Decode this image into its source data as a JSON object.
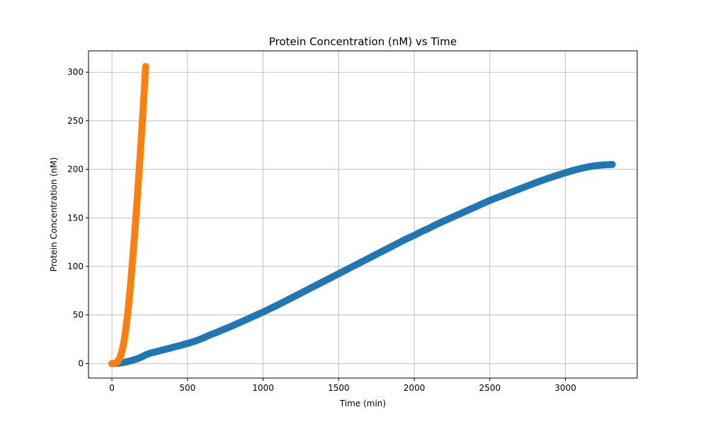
{
  "chart_data": {
    "type": "scatter",
    "title": "Protein Concentration (nM) vs Time",
    "xlabel": "Time (min)",
    "ylabel": "Protein Concentration (nM)",
    "xlim": [
      -155,
      3475
    ],
    "ylim": [
      -15,
      322
    ],
    "xticks": [
      0,
      500,
      1000,
      1500,
      2000,
      2500,
      3000
    ],
    "yticks": [
      0,
      50,
      100,
      150,
      200,
      250,
      300
    ],
    "grid": true,
    "series": [
      {
        "color": "#1f77b4",
        "points": [
          [
            0,
            0
          ],
          [
            25,
            0.1
          ],
          [
            50,
            0.4
          ],
          [
            75,
            1
          ],
          [
            100,
            1.8
          ],
          [
            125,
            2.8
          ],
          [
            150,
            4
          ],
          [
            175,
            5.3
          ],
          [
            200,
            7
          ],
          [
            225,
            9
          ],
          [
            250,
            10.5
          ],
          [
            300,
            12.5
          ],
          [
            350,
            14.5
          ],
          [
            400,
            16.5
          ],
          [
            450,
            18.5
          ],
          [
            500,
            20.7
          ],
          [
            550,
            23
          ],
          [
            600,
            26
          ],
          [
            650,
            29.5
          ],
          [
            700,
            32.5
          ],
          [
            750,
            35.8
          ],
          [
            800,
            39
          ],
          [
            850,
            42.5
          ],
          [
            900,
            46
          ],
          [
            950,
            49.5
          ],
          [
            1000,
            53
          ],
          [
            1050,
            56.8
          ],
          [
            1100,
            60.5
          ],
          [
            1150,
            64.5
          ],
          [
            1200,
            68.5
          ],
          [
            1250,
            72.5
          ],
          [
            1300,
            76.5
          ],
          [
            1350,
            80.5
          ],
          [
            1400,
            84.5
          ],
          [
            1450,
            88.5
          ],
          [
            1500,
            92.5
          ],
          [
            1550,
            96.5
          ],
          [
            1600,
            100.5
          ],
          [
            1650,
            104.5
          ],
          [
            1700,
            108.5
          ],
          [
            1750,
            112.5
          ],
          [
            1800,
            116.5
          ],
          [
            1850,
            120.5
          ],
          [
            1900,
            124.5
          ],
          [
            1950,
            128.5
          ],
          [
            2000,
            132
          ],
          [
            2050,
            136
          ],
          [
            2100,
            139.5
          ],
          [
            2150,
            143.5
          ],
          [
            2200,
            147
          ],
          [
            2250,
            150.5
          ],
          [
            2300,
            154
          ],
          [
            2350,
            157.5
          ],
          [
            2400,
            161
          ],
          [
            2450,
            164.5
          ],
          [
            2500,
            168
          ],
          [
            2550,
            171
          ],
          [
            2600,
            174
          ],
          [
            2650,
            177
          ],
          [
            2700,
            180
          ],
          [
            2750,
            183
          ],
          [
            2800,
            186
          ],
          [
            2850,
            188.8
          ],
          [
            2900,
            191.5
          ],
          [
            2950,
            194
          ],
          [
            3000,
            196.5
          ],
          [
            3050,
            198.8
          ],
          [
            3100,
            200.8
          ],
          [
            3150,
            202.5
          ],
          [
            3200,
            203.8
          ],
          [
            3250,
            204.5
          ],
          [
            3310,
            205
          ]
        ]
      },
      {
        "color": "#ff7f0e",
        "points": [
          [
            0,
            0
          ],
          [
            10,
            0
          ],
          [
            20,
            0.3
          ],
          [
            30,
            1
          ],
          [
            40,
            2.5
          ],
          [
            50,
            5
          ],
          [
            60,
            9
          ],
          [
            70,
            15
          ],
          [
            80,
            23
          ],
          [
            90,
            33
          ],
          [
            100,
            46
          ],
          [
            110,
            60
          ],
          [
            120,
            76
          ],
          [
            130,
            94
          ],
          [
            140,
            113
          ],
          [
            150,
            133
          ],
          [
            160,
            154
          ],
          [
            170,
            176
          ],
          [
            180,
            199
          ],
          [
            190,
            222
          ],
          [
            200,
            246
          ],
          [
            210,
            272
          ],
          [
            220,
            298
          ],
          [
            223,
            306
          ]
        ]
      }
    ]
  }
}
